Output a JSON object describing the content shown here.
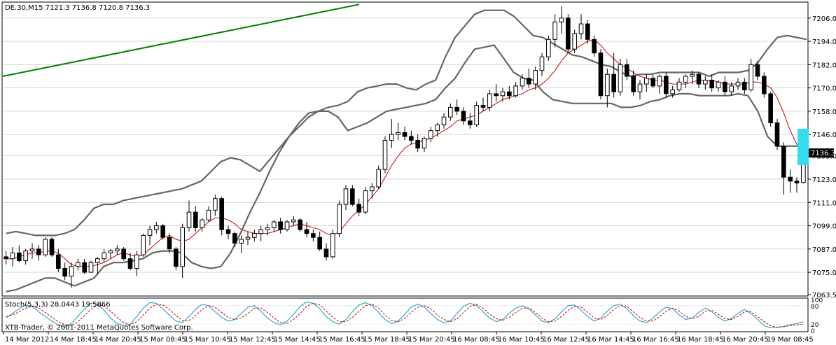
{
  "header": {
    "symbol_line": "DE.30,M15  7121.3 7136.8 7120.8 7136.3"
  },
  "indicator": {
    "label": "Stoch(5,3,3) 28.0443 19.5866"
  },
  "copyright": "XTB-Trader, © 2001-2011 MetaQuotes Software Corp.",
  "price_axis": {
    "ticks": [
      "7206.0",
      "7194.0",
      "7182.0",
      "7170.0",
      "7158.0",
      "7146.0",
      "7135.0",
      "7123.0",
      "7111.0",
      "7099.0",
      "7087.0",
      "7075.0",
      "7063.5"
    ],
    "current_price_label": "7136.3"
  },
  "stoch_axis": {
    "ticks": [
      "100",
      "80",
      "20",
      "0"
    ]
  },
  "time_axis": {
    "ticks": [
      "14 Mar 2012",
      "14 Mar 18:45",
      "14 Mar 20:45",
      "15 Mar 08:45",
      "15 Mar 10:45",
      "15 Mar 12:45",
      "15 Mar 14:45",
      "15 Mar 16:45",
      "15 Mar 18:45",
      "15 Mar 20:45",
      "16 Mar 08:45",
      "16 Mar 10:45",
      "16 Mar 12:45",
      "16 Mar 14:45",
      "16 Mar 16:45",
      "16 Mar 18:45",
      "16 Mar 20:45",
      "19 Mar 08:45"
    ]
  },
  "colors": {
    "background": "#ffffff",
    "grid": "#c0c0c0",
    "candle": "#000000",
    "bollinger": "#666666",
    "moving_average": "#cc0000",
    "trendline": "#008000",
    "stoch_main": "#33aacc",
    "stoch_signal": "#cc0000",
    "highlight": "#33ddee"
  },
  "chart_data": {
    "type": "candlestick",
    "y_range": [
      7063.5,
      7213.5
    ],
    "stoch_range": [
      0,
      100
    ],
    "stoch_levels": [
      80,
      20
    ],
    "candles": [
      [
        7083,
        7086,
        7079,
        7082
      ],
      [
        7082,
        7088,
        7078,
        7085
      ],
      [
        7085,
        7089,
        7080,
        7081
      ],
      [
        7081,
        7087,
        7079,
        7086
      ],
      [
        7086,
        7090,
        7082,
        7087
      ],
      [
        7087,
        7089,
        7081,
        7084
      ],
      [
        7084,
        7093,
        7083,
        7092
      ],
      [
        7092,
        7093,
        7083,
        7084
      ],
      [
        7084,
        7087,
        7075,
        7077
      ],
      [
        7077,
        7080,
        7071,
        7073
      ],
      [
        7073,
        7080,
        7067,
        7078
      ],
      [
        7078,
        7082,
        7076,
        7080
      ],
      [
        7080,
        7082,
        7074,
        7075
      ],
      [
        7075,
        7081,
        7075,
        7080
      ],
      [
        7080,
        7083,
        7074,
        7082
      ],
      [
        7082,
        7087,
        7080,
        7085
      ],
      [
        7085,
        7087,
        7082,
        7086
      ],
      [
        7086,
        7089,
        7084,
        7087
      ],
      [
        7087,
        7088,
        7081,
        7082
      ],
      [
        7082,
        7085,
        7076,
        7077
      ],
      [
        7077,
        7086,
        7073,
        7084
      ],
      [
        7084,
        7095,
        7083,
        7094
      ],
      [
        7094,
        7099,
        7089,
        7097
      ],
      [
        7097,
        7101,
        7095,
        7099
      ],
      [
        7099,
        7100,
        7092,
        7093
      ],
      [
        7093,
        7095,
        7085,
        7087
      ],
      [
        7087,
        7088,
        7076,
        7078
      ],
      [
        7078,
        7100,
        7072,
        7098
      ],
      [
        7098,
        7112,
        7096,
        7106
      ],
      [
        7106,
        7109,
        7096,
        7098
      ],
      [
        7098,
        7103,
        7096,
        7102
      ],
      [
        7102,
        7109,
        7101,
        7107
      ],
      [
        7107,
        7115,
        7104,
        7113
      ],
      [
        7113,
        7114,
        7094,
        7097
      ],
      [
        7097,
        7099,
        7092,
        7095
      ],
      [
        7095,
        7096,
        7088,
        7090
      ],
      [
        7090,
        7094,
        7085,
        7092
      ],
      [
        7092,
        7096,
        7089,
        7093
      ],
      [
        7093,
        7097,
        7091,
        7095
      ],
      [
        7095,
        7099,
        7091,
        7097
      ],
      [
        7097,
        7100,
        7094,
        7098
      ],
      [
        7098,
        7102,
        7096,
        7101
      ],
      [
        7101,
        7103,
        7095,
        7097
      ],
      [
        7097,
        7102,
        7096,
        7101
      ],
      [
        7101,
        7104,
        7099,
        7102
      ],
      [
        7102,
        7103,
        7096,
        7097
      ],
      [
        7097,
        7101,
        7093,
        7095
      ],
      [
        7095,
        7097,
        7091,
        7093
      ],
      [
        7093,
        7096,
        7086,
        7087
      ],
      [
        7087,
        7090,
        7081,
        7083
      ],
      [
        7083,
        7097,
        7082,
        7095
      ],
      [
        7095,
        7112,
        7093,
        7110
      ],
      [
        7110,
        7120,
        7107,
        7118
      ],
      [
        7118,
        7120,
        7109,
        7110
      ],
      [
        7110,
        7113,
        7104,
        7106
      ],
      [
        7106,
        7119,
        7105,
        7117
      ],
      [
        7117,
        7121,
        7113,
        7119
      ],
      [
        7119,
        7130,
        7118,
        7128
      ],
      [
        7128,
        7145,
        7126,
        7143
      ],
      [
        7143,
        7154,
        7139,
        7146
      ],
      [
        7146,
        7152,
        7143,
        7147
      ],
      [
        7147,
        7150,
        7143,
        7145
      ],
      [
        7145,
        7148,
        7141,
        7143
      ],
      [
        7143,
        7146,
        7137,
        7139
      ],
      [
        7139,
        7145,
        7137,
        7144
      ],
      [
        7144,
        7150,
        7142,
        7148
      ],
      [
        7148,
        7152,
        7145,
        7151
      ],
      [
        7151,
        7157,
        7149,
        7155
      ],
      [
        7155,
        7162,
        7153,
        7160
      ],
      [
        7160,
        7164,
        7156,
        7158
      ],
      [
        7158,
        7160,
        7151,
        7153
      ],
      [
        7153,
        7157,
        7149,
        7151
      ],
      [
        7151,
        7163,
        7150,
        7161
      ],
      [
        7161,
        7165,
        7158,
        7160
      ],
      [
        7160,
        7169,
        7158,
        7167
      ],
      [
        7167,
        7172,
        7163,
        7166
      ],
      [
        7166,
        7170,
        7163,
        7168
      ],
      [
        7168,
        7171,
        7164,
        7166
      ],
      [
        7166,
        7173,
        7165,
        7171
      ],
      [
        7171,
        7177,
        7169,
        7175
      ],
      [
        7175,
        7180,
        7170,
        7172
      ],
      [
        7172,
        7181,
        7169,
        7179
      ],
      [
        7179,
        7188,
        7176,
        7186
      ],
      [
        7186,
        7197,
        7184,
        7195
      ],
      [
        7195,
        7208,
        7191,
        7204
      ],
      [
        7204,
        7212,
        7198,
        7206
      ],
      [
        7206,
        7208,
        7188,
        7190
      ],
      [
        7190,
        7200,
        7188,
        7198
      ],
      [
        7198,
        7208,
        7195,
        7203
      ],
      [
        7203,
        7205,
        7193,
        7195
      ],
      [
        7195,
        7197,
        7186,
        7188
      ],
      [
        7188,
        7190,
        7164,
        7166
      ],
      [
        7166,
        7180,
        7160,
        7177
      ],
      [
        7177,
        7188,
        7165,
        7168
      ],
      [
        7168,
        7185,
        7166,
        7182
      ],
      [
        7182,
        7185,
        7174,
        7176
      ],
      [
        7176,
        7179,
        7166,
        7168
      ],
      [
        7168,
        7174,
        7164,
        7172
      ],
      [
        7172,
        7177,
        7168,
        7175
      ],
      [
        7175,
        7177,
        7170,
        7171
      ],
      [
        7171,
        7177,
        7167,
        7176
      ],
      [
        7176,
        7178,
        7165,
        7167
      ],
      [
        7167,
        7171,
        7165,
        7169
      ],
      [
        7169,
        7175,
        7168,
        7173
      ],
      [
        7173,
        7177,
        7170,
        7176
      ],
      [
        7176,
        7179,
        7172,
        7177
      ],
      [
        7177,
        7178,
        7170,
        7172
      ],
      [
        7172,
        7176,
        7169,
        7174
      ],
      [
        7174,
        7177,
        7168,
        7170
      ],
      [
        7170,
        7174,
        7168,
        7173
      ],
      [
        7173,
        7176,
        7166,
        7168
      ],
      [
        7168,
        7173,
        7166,
        7171
      ],
      [
        7171,
        7175,
        7169,
        7173
      ],
      [
        7173,
        7175,
        7167,
        7169
      ],
      [
        7169,
        7185,
        7168,
        7182
      ],
      [
        7182,
        7184,
        7174,
        7176
      ],
      [
        7176,
        7178,
        7165,
        7167
      ],
      [
        7167,
        7168,
        7150,
        7152
      ],
      [
        7152,
        7154,
        7138,
        7140
      ],
      [
        7140,
        7142,
        7115,
        7124
      ],
      [
        7124,
        7128,
        7116,
        7122
      ],
      [
        7122,
        7124,
        7116,
        7121
      ],
      [
        7121.3,
        7136.8,
        7120.8,
        7136.3
      ]
    ],
    "bollinger_upper": [
      7095,
      7096,
      7095,
      7094,
      7094,
      7094,
      7095,
      7097,
      7102,
      7108,
      7110,
      7110,
      7112,
      7113,
      7114,
      7115,
      7116,
      7117,
      7118,
      7120,
      7122,
      7127,
      7132,
      7134,
      7133,
      7130,
      7127,
      7133,
      7139,
      7145,
      7150,
      7155,
      7158,
      7160,
      7161,
      7163,
      7168,
      7170,
      7171,
      7172,
      7172,
      7170,
      7169,
      7172,
      7174,
      7186,
      7196,
      7202,
      7208,
      7210,
      7210,
      7210,
      7207,
      7202,
      7197,
      7196,
      7193,
      7190,
      7187,
      7186,
      7184,
      7182,
      7181,
      7178,
      7176,
      7177,
      7177,
      7178,
      7178,
      7178,
      7178,
      7178,
      7176,
      7178,
      7178,
      7178,
      7179,
      7183,
      7190,
      7196,
      7197,
      7196,
      7195
    ],
    "bollinger_lower": [
      7065,
      7066,
      7068,
      7070,
      7072,
      7072,
      7070,
      7068,
      7070,
      7072,
      7078,
      7080,
      7080,
      7081,
      7082,
      7085,
      7086,
      7086,
      7085,
      7080,
      7078,
      7077,
      7078,
      7085,
      7095,
      7106,
      7116,
      7127,
      7137,
      7145,
      7152,
      7157,
      7158,
      7158,
      7155,
      7148,
      7150,
      7152,
      7155,
      7158,
      7159,
      7160,
      7161,
      7162,
      7164,
      7170,
      7175,
      7183,
      7190,
      7191,
      7192,
      7185,
      7178,
      7175,
      7174,
      7168,
      7164,
      7163,
      7162,
      7162,
      7162,
      7162,
      7162,
      7160,
      7160,
      7161,
      7163,
      7164,
      7166,
      7167,
      7167,
      7166,
      7166,
      7166,
      7166,
      7167,
      7166,
      7158,
      7145,
      7140,
      7140,
      7140,
      7141
    ],
    "moving_average": [
      7082,
      7082,
      7083,
      7084,
      7085,
      7085,
      7086,
      7086,
      7085,
      7082,
      7079,
      7078,
      7078,
      7078,
      7079,
      7080,
      7082,
      7084,
      7085,
      7084,
      7083,
      7084,
      7087,
      7090,
      7093,
      7094,
      7092,
      7091,
      7092,
      7095,
      7098,
      7101,
      7103,
      7103,
      7102,
      7100,
      7097,
      7096,
      7095,
      7095,
      7095,
      7096,
      7097,
      7098,
      7099,
      7100,
      7099,
      7098,
      7097,
      7095,
      7094,
      7096,
      7100,
      7104,
      7107,
      7110,
      7114,
      7118,
      7124,
      7130,
      7135,
      7139,
      7141,
      7142,
      7143,
      7144,
      7146,
      7148,
      7150,
      7153,
      7154,
      7155,
      7156,
      7158,
      7160,
      7162,
      7164,
      7165,
      7166,
      7167,
      7169,
      7170,
      7172,
      7175,
      7179,
      7184,
      7188,
      7190,
      7192,
      7194,
      7195,
      7192,
      7188,
      7185,
      7182,
      7180,
      7178,
      7176,
      7175,
      7174,
      7174,
      7173,
      7172,
      7172,
      7172,
      7173,
      7174,
      7174,
      7174,
      7173,
      7172,
      7172,
      7172,
      7172,
      7173,
      7173,
      7172,
      7170,
      7165,
      7157,
      7148,
      7141,
      7138,
      7137
    ],
    "trendline": {
      "from_index": 0,
      "from_value": 7176,
      "to_index": 54,
      "to_value": 7213
    },
    "stoch_main": [
      40,
      55,
      70,
      82,
      78,
      60,
      45,
      30,
      18,
      10,
      22,
      45,
      70,
      88,
      85,
      65,
      40,
      22,
      15,
      20,
      45,
      72,
      90,
      88,
      70,
      48,
      30,
      25,
      45,
      68,
      85,
      80,
      60,
      42,
      30,
      35,
      55,
      75,
      80,
      62,
      40,
      25,
      18,
      30,
      52,
      78,
      92,
      88,
      70,
      45,
      28,
      20,
      35,
      60,
      82,
      90,
      80,
      58,
      35,
      22,
      30,
      52,
      75,
      85,
      75,
      55,
      35,
      25,
      30,
      55,
      78,
      88,
      80,
      60,
      40,
      28,
      35,
      55,
      72,
      80,
      70,
      50,
      30,
      25,
      38,
      60,
      80,
      82,
      65,
      45,
      30,
      40,
      62,
      80,
      85,
      70,
      48,
      30,
      25,
      40,
      60,
      75,
      70,
      50,
      35,
      40,
      58,
      72,
      60,
      42,
      30,
      38,
      55,
      68,
      55,
      35,
      15,
      8,
      10,
      12,
      18,
      22,
      28
    ],
    "stoch_signal": [
      45,
      50,
      60,
      72,
      78,
      72,
      58,
      42,
      28,
      18,
      16,
      28,
      48,
      68,
      82,
      80,
      62,
      42,
      25,
      18,
      28,
      50,
      72,
      85,
      82,
      68,
      48,
      32,
      32,
      48,
      68,
      80,
      75,
      58,
      42,
      35,
      40,
      55,
      72,
      72,
      58,
      40,
      25,
      22,
      35,
      55,
      78,
      88,
      82,
      62,
      42,
      28,
      28,
      42,
      62,
      80,
      85,
      72,
      50,
      32,
      28,
      38,
      58,
      75,
      80,
      70,
      50,
      35,
      28,
      38,
      58,
      78,
      84,
      72,
      52,
      38,
      32,
      42,
      58,
      72,
      72,
      58,
      40,
      28,
      30,
      45,
      65,
      78,
      75,
      58,
      40,
      35,
      48,
      68,
      80,
      78,
      60,
      42,
      30,
      30,
      45,
      62,
      72,
      62,
      45,
      38,
      45,
      62,
      65,
      52,
      38,
      35,
      45,
      60,
      60,
      45,
      28,
      15,
      10,
      12,
      15,
      18,
      20
    ]
  }
}
